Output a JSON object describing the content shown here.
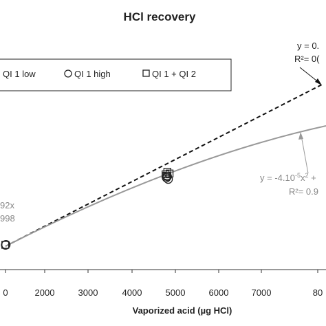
{
  "chart_data": {
    "type": "scatter",
    "title": "HCl recovery",
    "xlabel": "Vaporized acid (µg HCl)",
    "ylabel": "",
    "x_ticks": [
      "0",
      "2000",
      "3000",
      "4000",
      "5000",
      "6000",
      "7000",
      "80"
    ],
    "legend": {
      "placement": "top-left",
      "entries": [
        {
          "label": "QI 1 low",
          "marker": "none"
        },
        {
          "label": "QI 1 high",
          "marker": "circle"
        },
        {
          "label": "QI 1  + QI 2",
          "marker": "square"
        }
      ]
    },
    "series": [
      {
        "name": "QI 1 low",
        "marker": "none",
        "points": []
      },
      {
        "name": "QI 1 high",
        "marker": "circle",
        "points": [
          {
            "x": 1100,
            "y": 1020
          },
          {
            "x": 1110,
            "y": 1040
          },
          {
            "x": 4720,
            "y": 4220
          },
          {
            "x": 4740,
            "y": 4280
          },
          {
            "x": 4760,
            "y": 4150
          }
        ]
      },
      {
        "name": "QI 1  + QI 2",
        "marker": "square",
        "points": [
          {
            "x": 1095,
            "y": 1030
          },
          {
            "x": 4700,
            "y": 4380
          },
          {
            "x": 4740,
            "y": 4500
          },
          {
            "x": 4790,
            "y": 4420
          },
          {
            "x": 4720,
            "y": 4310
          }
        ]
      }
    ],
    "fits": [
      {
        "style": "dashed",
        "color": "#111111",
        "x_range": [
          1100,
          8200
        ],
        "equation": "y = 0.",
        "r2": "R²= 0("
      },
      {
        "style": "solid",
        "color": "#999999",
        "x_range": [
          1100,
          8400
        ],
        "equation": "y = -4.10-5x2 +",
        "r2": "R²= 0.9"
      }
    ],
    "partial_labels": {
      "left_eq": "92x",
      "left_r2": "998"
    },
    "colors": {
      "dashed_fit": "#111111",
      "curve_fit": "#999999",
      "text_gray": "#888888"
    },
    "grid": false
  }
}
